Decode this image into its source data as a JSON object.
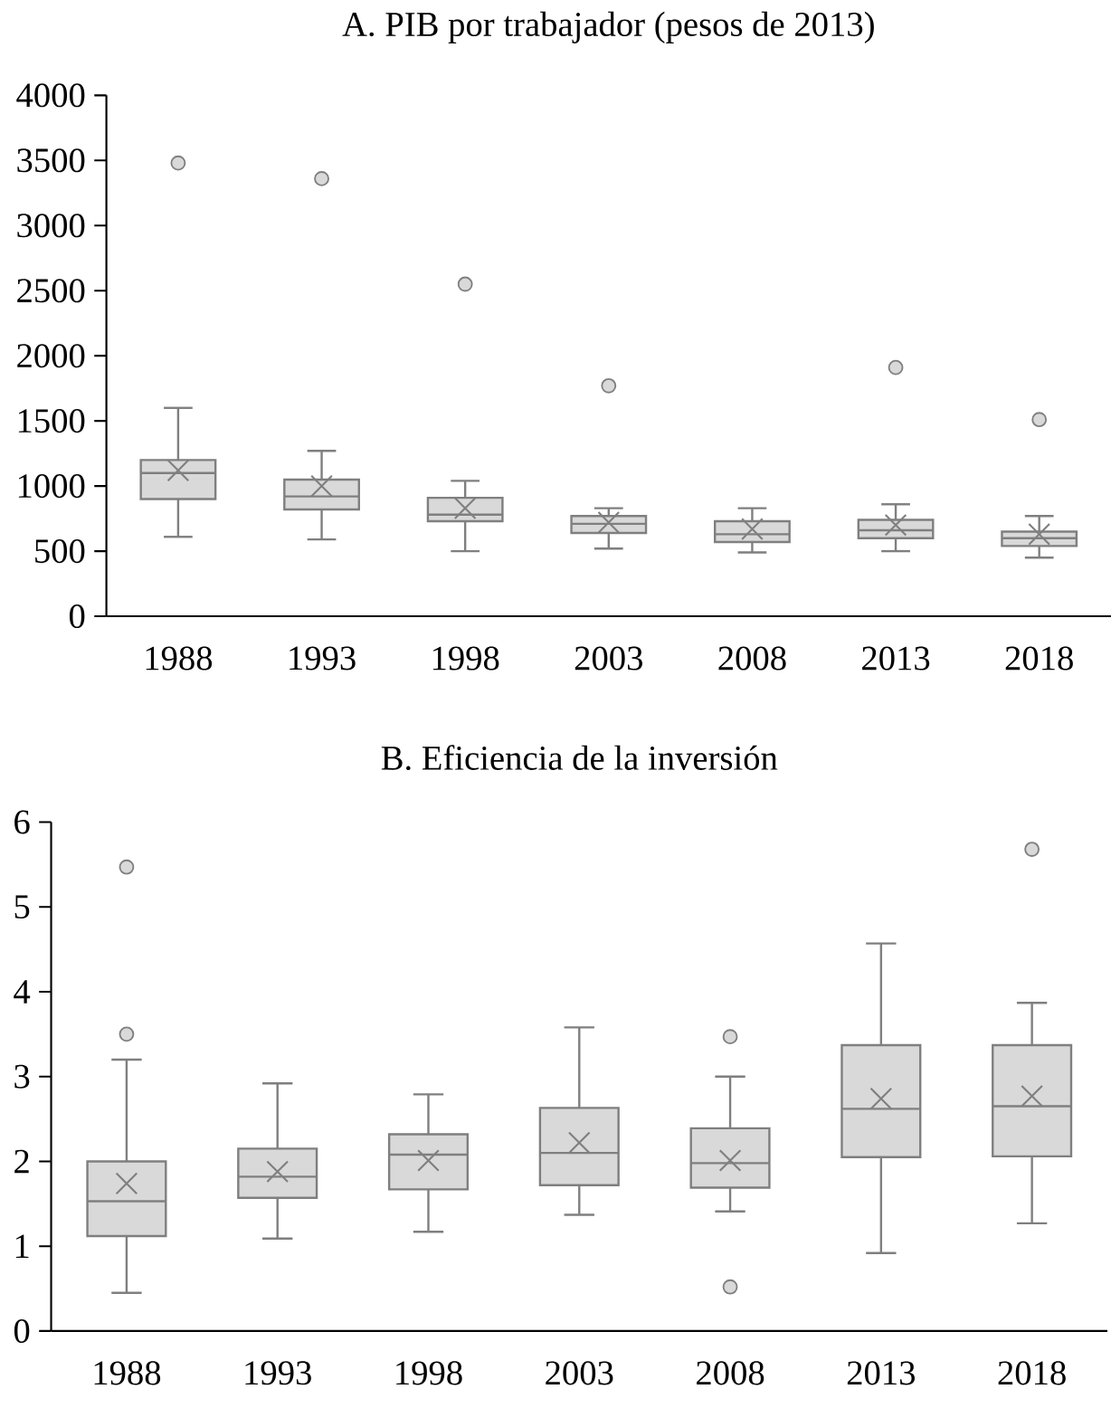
{
  "chart_data": [
    {
      "type": "box",
      "title": "A. PIB por trabajador (pesos de 2013)",
      "color": "#d9d9d9",
      "categories": [
        "1988",
        "1993",
        "1998",
        "2003",
        "2008",
        "2013",
        "2018"
      ],
      "boxes": [
        {
          "low": 610,
          "q1": 900,
          "median": 1100,
          "q3": 1200,
          "high": 1600,
          "mean": 1120,
          "outliers": [
            3480
          ]
        },
        {
          "low": 590,
          "q1": 820,
          "median": 920,
          "q3": 1050,
          "high": 1270,
          "mean": 1000,
          "outliers": [
            3360
          ]
        },
        {
          "low": 500,
          "q1": 730,
          "median": 780,
          "q3": 910,
          "high": 1040,
          "mean": 830,
          "outliers": [
            2550
          ]
        },
        {
          "low": 520,
          "q1": 640,
          "median": 710,
          "q3": 770,
          "high": 830,
          "mean": 720,
          "outliers": [
            1770
          ]
        },
        {
          "low": 490,
          "q1": 570,
          "median": 630,
          "q3": 730,
          "high": 830,
          "mean": 670
        },
        {
          "low": 500,
          "q1": 600,
          "median": 660,
          "q3": 740,
          "high": 860,
          "mean": 700,
          "outliers": [
            1910
          ]
        },
        {
          "low": 450,
          "q1": 540,
          "median": 600,
          "q3": 650,
          "high": 770,
          "mean": 630,
          "outliers": [
            1510
          ]
        }
      ],
      "ylim": [
        0,
        4000
      ],
      "yticks": [
        0,
        500,
        1000,
        1500,
        2000,
        2500,
        3000,
        3500,
        4000
      ]
    },
    {
      "type": "box",
      "title": "B. Eficiencia de la inversión",
      "color": "#d9d9d9",
      "categories": [
        "1988",
        "1993",
        "1998",
        "2003",
        "2008",
        "2013",
        "2018"
      ],
      "boxes": [
        {
          "low": 0.45,
          "q1": 1.12,
          "median": 1.53,
          "q3": 2.0,
          "high": 3.2,
          "mean": 1.74,
          "outliers": [
            3.5,
            5.47
          ]
        },
        {
          "low": 1.09,
          "q1": 1.57,
          "median": 1.82,
          "q3": 2.15,
          "high": 2.92,
          "mean": 1.88
        },
        {
          "low": 1.17,
          "q1": 1.67,
          "median": 2.08,
          "q3": 2.32,
          "high": 2.79,
          "mean": 2.01
        },
        {
          "low": 1.37,
          "q1": 1.72,
          "median": 2.1,
          "q3": 2.63,
          "high": 3.58,
          "mean": 2.22
        },
        {
          "low": 1.41,
          "q1": 1.69,
          "median": 1.98,
          "q3": 2.39,
          "high": 3.0,
          "mean": 2.01,
          "outliers": [
            3.47,
            0.52
          ]
        },
        {
          "low": 0.92,
          "q1": 2.05,
          "median": 2.62,
          "q3": 3.37,
          "high": 4.57,
          "mean": 2.74
        },
        {
          "low": 1.27,
          "q1": 2.06,
          "median": 2.65,
          "q3": 3.37,
          "high": 3.87,
          "mean": 2.77,
          "outliers": [
            5.68
          ]
        }
      ],
      "ylim": [
        0,
        6
      ],
      "yticks": [
        0,
        1,
        2,
        3,
        4,
        5,
        6
      ]
    }
  ]
}
